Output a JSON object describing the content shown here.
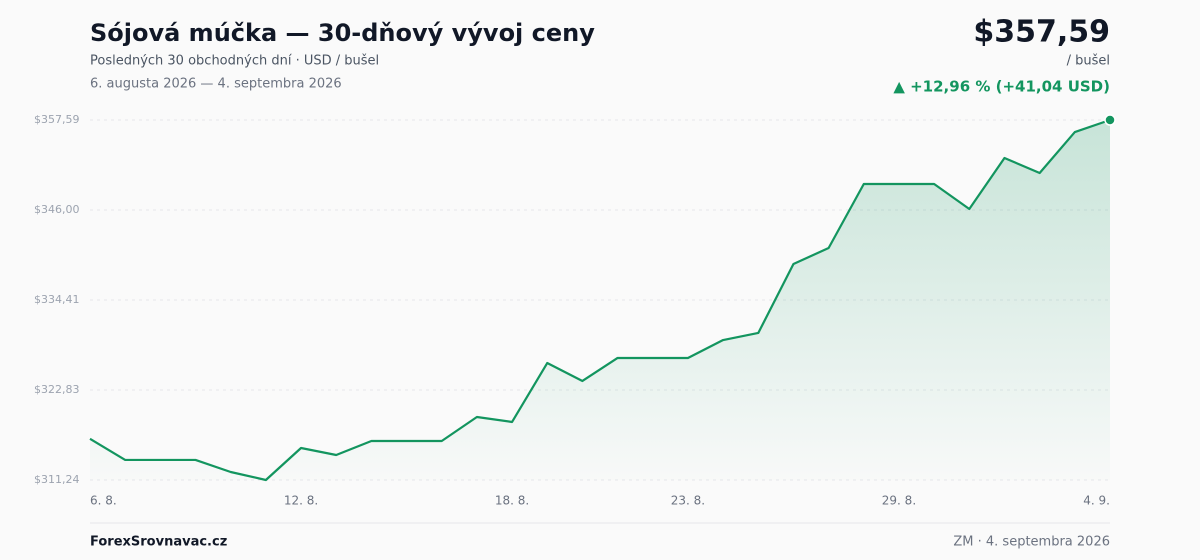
{
  "chart_data": {
    "type": "line",
    "title": "Sójová múčka — 30-dňový vývoj ceny",
    "subtitle": "Posledných 30 obchodných dní · USD / bušel",
    "date_range": "6. augusta 2026 — 4. septembra 2026",
    "price_label": "$357,59",
    "unit_label": "/ bušel",
    "change_label": "▲ +12,96 % (+41,04 USD)",
    "footer_left": "ForexSrovnavac.cz",
    "footer_right": "ZM · 4. septembra 2026",
    "categories": [
      "6. 8.",
      null,
      null,
      null,
      null,
      null,
      "12. 8.",
      null,
      null,
      null,
      null,
      null,
      "18. 8.",
      null,
      null,
      null,
      null,
      "23. 8.",
      null,
      null,
      null,
      null,
      null,
      "29. 8.",
      null,
      null,
      null,
      null,
      null,
      "4. 9."
    ],
    "series": [
      {
        "name": "Sójová múčka",
        "color": "#13955f",
        "values": [
          316.55,
          313.82,
          313.82,
          313.82,
          312.27,
          311.24,
          315.36,
          314.46,
          316.26,
          316.26,
          316.26,
          319.35,
          318.71,
          326.3,
          323.99,
          326.95,
          326.95,
          326.95,
          329.26,
          330.17,
          339.05,
          341.11,
          349.35,
          349.35,
          349.35,
          346.13,
          352.7,
          350.77,
          356.04,
          357.59
        ]
      }
    ],
    "ylim": [
      311.24,
      357.59
    ],
    "yticks": [
      {
        "value": 357.59,
        "label": "$357,59"
      },
      {
        "value": 346.0,
        "label": "$346,00"
      },
      {
        "value": 334.41,
        "label": "$334,41"
      },
      {
        "value": 322.83,
        "label": "$322,83"
      },
      {
        "value": 311.24,
        "label": "$311,24"
      }
    ],
    "grid": true
  }
}
